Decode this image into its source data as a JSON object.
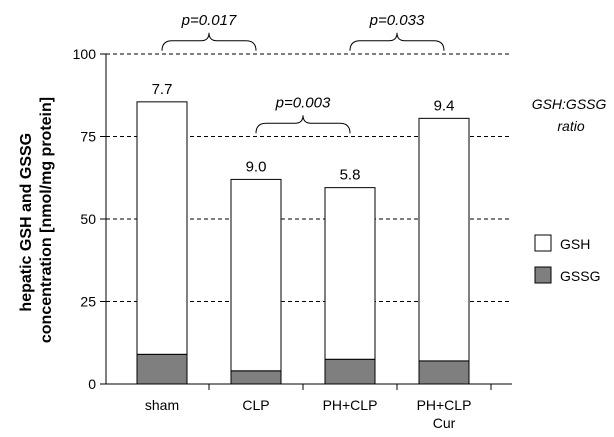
{
  "chart_data": {
    "type": "bar",
    "stacked": true,
    "categories": [
      "sham",
      "CLP",
      "PH+CLP",
      "PH+CLP\nCur"
    ],
    "series": [
      {
        "name": "GSSG",
        "values": [
          9,
          4,
          7.5,
          7
        ],
        "color": "#7f7f7f"
      },
      {
        "name": "GSH",
        "values": [
          76.5,
          58,
          52,
          73.5
        ],
        "color": "#ffffff"
      }
    ],
    "totals": [
      85.5,
      62,
      59.5,
      80.5
    ],
    "data_labels": [
      "7.7",
      "9.0",
      "5.8",
      "9.4"
    ],
    "ylabel_lines": [
      "hepatic GSH and GSSG",
      "concentration [nmol/mg protein]"
    ],
    "ylim": [
      0,
      100
    ],
    "yticks": [
      0,
      25,
      50,
      75,
      100
    ],
    "grid": "horizontal dashed",
    "legend": "right",
    "side_label_lines": [
      "GSH:GSSG",
      "ratio"
    ],
    "comparisons": [
      {
        "from": 0,
        "to": 1,
        "label": "p=0.017",
        "level": 104
      },
      {
        "from": 1,
        "to": 2,
        "label": "p=0.003",
        "level": 79
      },
      {
        "from": 2,
        "to": 3,
        "label": "p=0.033",
        "level": 104
      }
    ]
  }
}
